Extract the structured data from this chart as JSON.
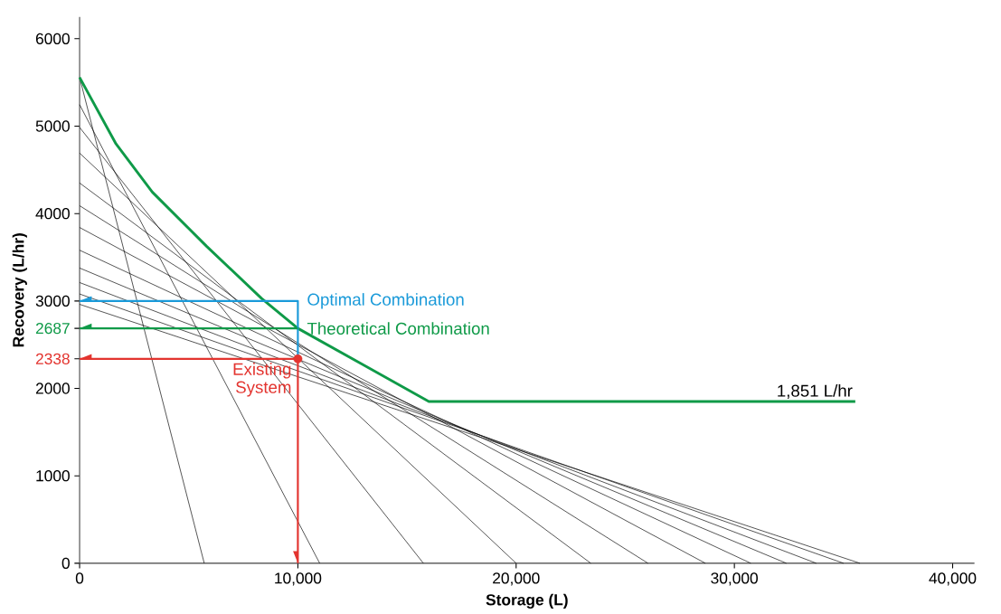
{
  "chart_data": {
    "type": "line",
    "xlabel": "Storage (L)",
    "ylabel": "Recovery (L/hr)",
    "xlim": [
      0,
      41000
    ],
    "ylim": [
      0,
      6250
    ],
    "xticks": [
      0,
      {
        "value": 10000,
        "label": "10,000"
      },
      {
        "value": 20000,
        "label": "20,000"
      },
      {
        "value": 30000,
        "label": "30,000"
      },
      {
        "value": 40000,
        "label": "40,000"
      }
    ],
    "yticks": [
      0,
      1000,
      2000,
      {
        "value": 2338,
        "label": "2338"
      },
      {
        "value": 2687,
        "label": "2687"
      },
      3000,
      4000,
      5000,
      6000
    ],
    "grid": false,
    "series": [
      {
        "color": "#000000",
        "x": [
          0,
          5710
        ],
        "values": [
          5557,
          0
        ]
      },
      {
        "color": "#000000",
        "x": [
          0,
          11000
        ],
        "values": [
          5246,
          0
        ]
      },
      {
        "color": "#000000",
        "x": [
          0,
          15750
        ],
        "values": [
          4986,
          0
        ]
      },
      {
        "color": "#000000",
        "x": [
          0,
          20000
        ],
        "values": [
          4692,
          0
        ]
      },
      {
        "color": "#000000",
        "x": [
          0,
          23420
        ],
        "values": [
          4350,
          0
        ]
      },
      {
        "color": "#000000",
        "x": [
          0,
          26040
        ],
        "values": [
          4090,
          0
        ]
      },
      {
        "color": "#000000",
        "x": [
          0,
          28670
        ],
        "values": [
          3841,
          0
        ]
      },
      {
        "color": "#000000",
        "x": [
          0,
          30750
        ],
        "values": [
          3581,
          0
        ]
      },
      {
        "color": "#000000",
        "x": [
          0,
          32380
        ],
        "values": [
          3377,
          0
        ]
      },
      {
        "color": "#000000",
        "x": [
          0,
          33750
        ],
        "values": [
          3211,
          0
        ]
      },
      {
        "color": "#000000",
        "x": [
          0,
          35000
        ],
        "values": [
          3080,
          0
        ]
      },
      {
        "color": "#000000",
        "x": [
          0,
          35750
        ],
        "values": [
          2962,
          0
        ]
      },
      {
        "color": "#0f9a48",
        "x": [
          0,
          1670,
          3330,
          5830,
          8330,
          10000,
          13000,
          16000,
          35540
        ],
        "values": [
          5557,
          4796,
          4246,
          3623,
          3031,
          2687,
          2270,
          1851,
          1851
        ]
      },
      {
        "name": "Optimal Combination",
        "color": "#1a9ad9",
        "x": [
          0,
          10000,
          10000
        ],
        "values": [
          3000,
          3000,
          2338
        ]
      },
      {
        "name": "Theoretical Combination",
        "color": "#0f9a48",
        "x": [
          0,
          10000
        ],
        "values": [
          2687,
          2687
        ]
      },
      {
        "name": "Existing System",
        "color": "#e3342f",
        "x": [
          0,
          10000,
          10000
        ],
        "values": [
          2338,
          2338,
          0
        ]
      },
      {
        "type": "scatter",
        "color": "#e3342f",
        "x": [
          10000
        ],
        "values": [
          2338
        ]
      }
    ],
    "annotations": [
      {
        "text": "1,851 L/hr",
        "x": 35540,
        "y": 1851
      }
    ]
  }
}
